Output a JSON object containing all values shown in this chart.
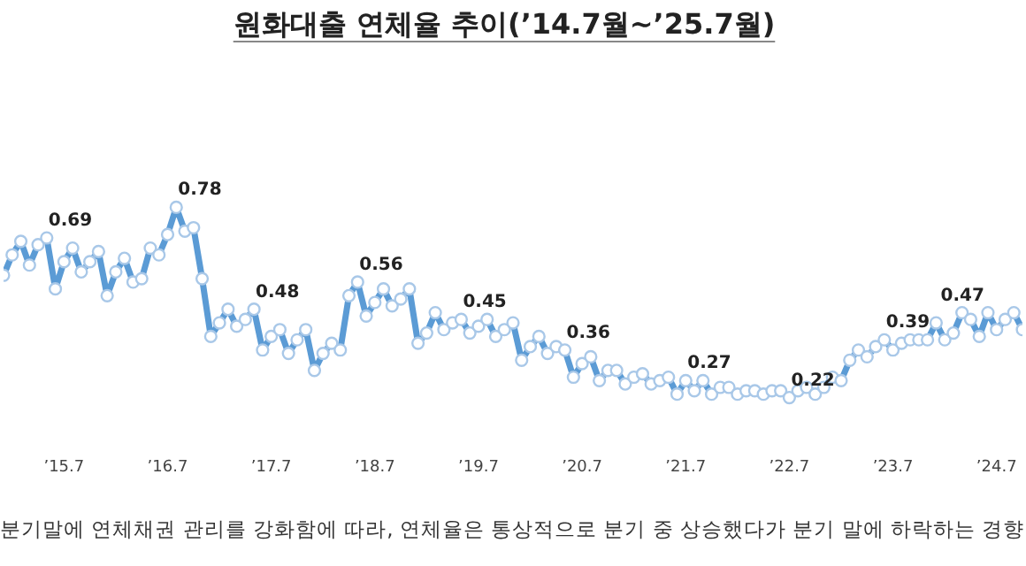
{
  "chart_data": {
    "type": "line",
    "title": "원화대출 연체율 추이(’14.7월~’25.7월)",
    "categories": [
      null,
      null,
      null,
      null,
      null,
      null,
      null,
      "’15.7",
      null,
      null,
      null,
      null,
      null,
      null,
      null,
      null,
      null,
      null,
      null,
      "’16.7",
      null,
      null,
      null,
      null,
      null,
      null,
      null,
      null,
      null,
      null,
      null,
      "’17.7",
      null,
      null,
      null,
      null,
      null,
      null,
      null,
      null,
      null,
      null,
      null,
      "’18.7",
      null,
      null,
      null,
      null,
      null,
      null,
      null,
      null,
      null,
      null,
      null,
      "’19.7",
      null,
      null,
      null,
      null,
      null,
      null,
      null,
      null,
      null,
      null,
      null,
      "’20.7",
      null,
      null,
      null,
      null,
      null,
      null,
      null,
      null,
      null,
      null,
      null,
      "’21.7",
      null,
      null,
      null,
      null,
      null,
      null,
      null,
      null,
      null,
      null,
      null,
      "’22.7",
      null,
      null,
      null,
      null,
      null,
      null,
      null,
      null,
      null,
      null,
      null,
      "’23.7",
      null,
      null,
      null,
      null,
      null,
      null,
      null,
      null,
      null,
      null,
      null,
      "’24.7",
      null,
      null,
      null
    ],
    "series": [
      {
        "color": "#5b9bd5",
        "values": [
          0.58,
          0.64,
          0.68,
          0.61,
          0.67,
          0.69,
          0.54,
          0.62,
          0.66,
          0.59,
          0.62,
          0.65,
          0.52,
          0.59,
          0.63,
          0.56,
          0.57,
          0.66,
          0.64,
          0.7,
          0.78,
          0.71,
          0.72,
          0.57,
          0.4,
          0.44,
          0.48,
          0.43,
          0.45,
          0.48,
          0.36,
          0.4,
          0.42,
          0.35,
          0.39,
          0.42,
          0.3,
          0.35,
          0.38,
          0.36,
          0.52,
          0.56,
          0.46,
          0.5,
          0.54,
          0.49,
          0.51,
          0.54,
          0.38,
          0.41,
          0.47,
          0.42,
          0.44,
          0.45,
          0.41,
          0.43,
          0.45,
          0.4,
          0.42,
          0.44,
          0.33,
          0.37,
          0.4,
          0.35,
          0.37,
          0.36,
          0.28,
          0.32,
          0.34,
          0.27,
          0.3,
          0.3,
          0.26,
          0.28,
          0.29,
          0.26,
          0.27,
          0.28,
          0.23,
          0.27,
          0.24,
          0.27,
          0.23,
          0.25,
          0.25,
          0.23,
          0.24,
          0.24,
          0.23,
          0.24,
          0.24,
          0.22,
          0.24,
          0.25,
          0.23,
          0.25,
          0.28,
          0.27,
          0.33,
          0.36,
          0.34,
          0.37,
          0.39,
          0.36,
          0.38,
          0.39,
          0.39,
          0.39,
          0.44,
          0.39,
          0.41,
          0.47,
          0.45,
          0.4,
          0.47,
          0.42,
          0.45,
          0.47,
          0.42
        ],
        "value_labels": [
          null,
          null,
          null,
          null,
          null,
          "0.69",
          null,
          null,
          null,
          null,
          null,
          null,
          null,
          null,
          null,
          null,
          null,
          null,
          null,
          null,
          "0.78",
          null,
          null,
          null,
          null,
          null,
          null,
          null,
          null,
          "0.48",
          null,
          null,
          null,
          null,
          null,
          null,
          null,
          null,
          null,
          null,
          null,
          "0.56",
          null,
          null,
          null,
          null,
          null,
          null,
          null,
          null,
          null,
          null,
          null,
          "0.45",
          null,
          null,
          null,
          null,
          null,
          null,
          null,
          null,
          null,
          null,
          null,
          "0.36",
          null,
          null,
          null,
          null,
          null,
          null,
          null,
          null,
          null,
          null,
          null,
          null,
          null,
          "0.27",
          null,
          null,
          null,
          null,
          null,
          null,
          null,
          null,
          null,
          null,
          null,
          "0.22",
          null,
          null,
          null,
          null,
          null,
          null,
          null,
          null,
          null,
          null,
          "0.39",
          null,
          null,
          null,
          null,
          null,
          null,
          null,
          null,
          null,
          null,
          null,
          "0.47",
          null,
          null,
          null,
          null
        ]
      }
    ],
    "marker": "circle",
    "line_style": "solid",
    "grid": false,
    "legend": false,
    "annotations": [
      "분기말에 연체채권 관리를 강화함에 따라, 연체율은 통상적으로 분기 중 상승했다가 분기 말에 하락하는 경향"
    ]
  }
}
